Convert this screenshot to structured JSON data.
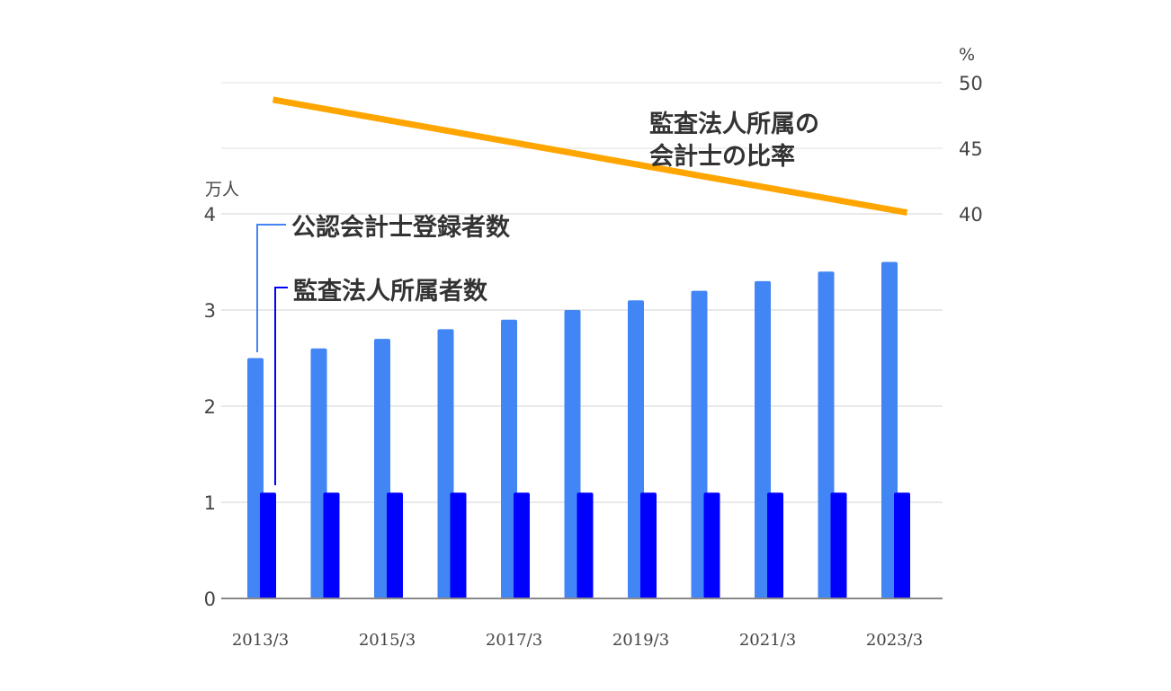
{
  "chart_data": {
    "type": "bar",
    "categories": [
      "2013/3",
      "2014/3",
      "2015/3",
      "2016/3",
      "2017/3",
      "2018/3",
      "2019/3",
      "2020/3",
      "2021/3",
      "2022/3",
      "2023/3"
    ],
    "x_tick_labels": [
      "2013/3",
      "2015/3",
      "2017/3",
      "2019/3",
      "2021/3",
      "2023/3"
    ],
    "series": [
      {
        "name": "公認会計士登録者数",
        "type": "bar",
        "axis": "left",
        "color": "#4285f4",
        "values": [
          2.5,
          2.6,
          2.7,
          2.8,
          2.9,
          3.0,
          3.1,
          3.2,
          3.3,
          3.4,
          3.5
        ]
      },
      {
        "name": "監査法人所属者数",
        "type": "bar",
        "axis": "left",
        "color": "#0000ff",
        "values": [
          1.1,
          1.1,
          1.1,
          1.1,
          1.1,
          1.1,
          1.1,
          1.1,
          1.1,
          1.1,
          1.1
        ]
      },
      {
        "name": "監査法人所属の会計士の比率",
        "name_lines": [
          "監査法人所属の",
          "会計士の比率"
        ],
        "type": "line",
        "axis": "right",
        "color": "#ffa500",
        "x": [
          "2013/3",
          "2023/3"
        ],
        "values": [
          48.7,
          40.1
        ]
      }
    ],
    "y_left": {
      "unit": "万人",
      "ylim": [
        0,
        4
      ],
      "ticks": [
        0,
        1,
        2,
        3,
        4
      ]
    },
    "y_right": {
      "unit": "%",
      "ylim": [
        40,
        50
      ],
      "ticks": [
        40,
        45,
        50
      ]
    },
    "grid": true,
    "legend": "inline-annotations"
  }
}
